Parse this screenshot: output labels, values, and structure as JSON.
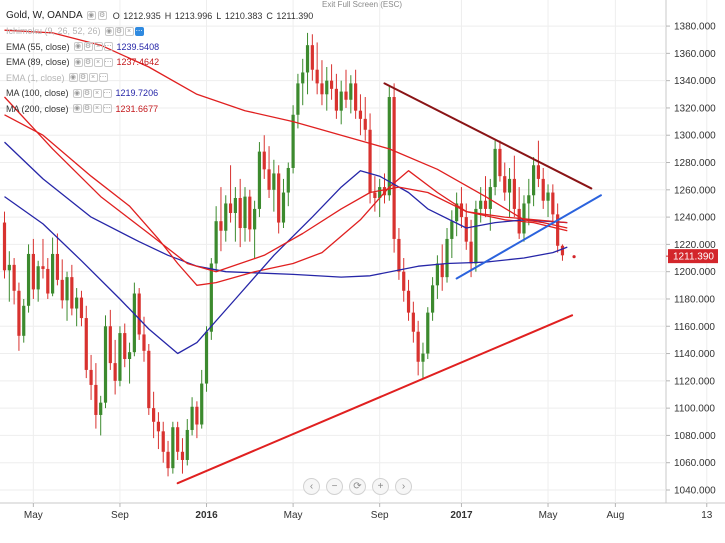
{
  "header": {
    "symbol": "Gold, W, OANDA",
    "ohlc": [
      {
        "key": "O",
        "value": "1212.935"
      },
      {
        "key": "H",
        "value": "1213.996"
      },
      {
        "key": "L",
        "value": "1210.383"
      },
      {
        "key": "C",
        "value": "1211.390"
      }
    ],
    "exit_fullscreen": "Exit Full Screen (ESC)"
  },
  "indicators": [
    {
      "name": "Ichimoku (9, 26, 52, 26)",
      "value": "",
      "color": "#2626a8",
      "faded": true
    },
    {
      "name": "EMA (55, close)",
      "value": "1239.5408",
      "color": "#2626a8",
      "faded": false
    },
    {
      "name": "EMA (89, close)",
      "value": "1237.4642",
      "color": "#c4191d",
      "faded": false
    },
    {
      "name": "EMA (1, close)",
      "value": "",
      "color": "#2626a8",
      "faded": true
    },
    {
      "name": "MA (100, close)",
      "value": "1219.7206",
      "color": "#2626a8",
      "faded": false
    },
    {
      "name": "MA (200, close)",
      "value": "1231.6677",
      "color": "#c4191d",
      "faded": false
    }
  ],
  "navigation": [
    "‹",
    "−",
    "⟳",
    "+",
    "›"
  ],
  "colors": {
    "up": "#3c8a2e",
    "down": "#d8322f",
    "blue_line": "#2626a8",
    "red_line": "#e02020",
    "trendline_blue": "#2b63dd",
    "trendline_dark_red": "#8a1416",
    "price_label_bg": "#d3262b"
  },
  "chart_data": {
    "type": "candlestick",
    "symbol": "Gold",
    "timeframe": "W",
    "source": "OANDA",
    "last_price": "1211.390",
    "ylim": [
      1030,
      1390
    ],
    "y_ticks": [
      "1040.000",
      "1060.000",
      "1080.000",
      "1100.000",
      "1120.000",
      "1140.000",
      "1160.000",
      "1180.000",
      "1200.000",
      "1220.000",
      "1240.000",
      "1260.000",
      "1280.000",
      "1300.000",
      "1320.000",
      "1340.000",
      "1360.000",
      "1380.000"
    ],
    "x_ticks": [
      {
        "label": "May",
        "week": 6
      },
      {
        "label": "Sep",
        "week": 24
      },
      {
        "label": "2016",
        "week": 42
      },
      {
        "label": "May",
        "week": 60
      },
      {
        "label": "Sep",
        "week": 78
      },
      {
        "label": "2017",
        "week": 95
      },
      {
        "label": "May",
        "week": 113
      },
      {
        "label": "Aug",
        "week": 127
      },
      {
        "label": "13",
        "week": 146
      }
    ],
    "candles": [
      {
        "o": 1236,
        "h": 1244,
        "l": 1195,
        "c": 1201
      },
      {
        "o": 1201,
        "h": 1215,
        "l": 1178,
        "c": 1205
      },
      {
        "o": 1205,
        "h": 1210,
        "l": 1176,
        "c": 1186
      },
      {
        "o": 1186,
        "h": 1192,
        "l": 1142,
        "c": 1153
      },
      {
        "o": 1153,
        "h": 1180,
        "l": 1148,
        "c": 1175
      },
      {
        "o": 1175,
        "h": 1220,
        "l": 1170,
        "c": 1213
      },
      {
        "o": 1213,
        "h": 1224,
        "l": 1180,
        "c": 1187
      },
      {
        "o": 1187,
        "h": 1208,
        "l": 1178,
        "c": 1204
      },
      {
        "o": 1204,
        "h": 1224,
        "l": 1195,
        "c": 1202
      },
      {
        "o": 1202,
        "h": 1210,
        "l": 1180,
        "c": 1184
      },
      {
        "o": 1184,
        "h": 1225,
        "l": 1182,
        "c": 1213
      },
      {
        "o": 1213,
        "h": 1228,
        "l": 1190,
        "c": 1194
      },
      {
        "o": 1194,
        "h": 1209,
        "l": 1173,
        "c": 1179
      },
      {
        "o": 1179,
        "h": 1200,
        "l": 1164,
        "c": 1196
      },
      {
        "o": 1196,
        "h": 1205,
        "l": 1168,
        "c": 1173
      },
      {
        "o": 1173,
        "h": 1188,
        "l": 1160,
        "c": 1181
      },
      {
        "o": 1181,
        "h": 1186,
        "l": 1160,
        "c": 1166
      },
      {
        "o": 1166,
        "h": 1175,
        "l": 1122,
        "c": 1128
      },
      {
        "o": 1128,
        "h": 1139,
        "l": 1106,
        "c": 1117
      },
      {
        "o": 1117,
        "h": 1133,
        "l": 1085,
        "c": 1095
      },
      {
        "o": 1095,
        "h": 1109,
        "l": 1080,
        "c": 1104
      },
      {
        "o": 1104,
        "h": 1168,
        "l": 1100,
        "c": 1160
      },
      {
        "o": 1160,
        "h": 1172,
        "l": 1128,
        "c": 1133
      },
      {
        "o": 1133,
        "h": 1150,
        "l": 1110,
        "c": 1120
      },
      {
        "o": 1120,
        "h": 1160,
        "l": 1116,
        "c": 1155
      },
      {
        "o": 1155,
        "h": 1162,
        "l": 1130,
        "c": 1136
      },
      {
        "o": 1136,
        "h": 1148,
        "l": 1118,
        "c": 1141
      },
      {
        "o": 1141,
        "h": 1192,
        "l": 1138,
        "c": 1184
      },
      {
        "o": 1184,
        "h": 1188,
        "l": 1150,
        "c": 1154
      },
      {
        "o": 1154,
        "h": 1167,
        "l": 1134,
        "c": 1142
      },
      {
        "o": 1142,
        "h": 1147,
        "l": 1095,
        "c": 1100
      },
      {
        "o": 1100,
        "h": 1112,
        "l": 1078,
        "c": 1090
      },
      {
        "o": 1090,
        "h": 1097,
        "l": 1070,
        "c": 1083
      },
      {
        "o": 1083,
        "h": 1090,
        "l": 1060,
        "c": 1068
      },
      {
        "o": 1068,
        "h": 1076,
        "l": 1050,
        "c": 1056
      },
      {
        "o": 1056,
        "h": 1090,
        "l": 1052,
        "c": 1086
      },
      {
        "o": 1086,
        "h": 1090,
        "l": 1062,
        "c": 1068
      },
      {
        "o": 1068,
        "h": 1078,
        "l": 1052,
        "c": 1062
      },
      {
        "o": 1062,
        "h": 1092,
        "l": 1058,
        "c": 1084
      },
      {
        "o": 1084,
        "h": 1108,
        "l": 1080,
        "c": 1101
      },
      {
        "o": 1101,
        "h": 1105,
        "l": 1078,
        "c": 1088
      },
      {
        "o": 1088,
        "h": 1128,
        "l": 1085,
        "c": 1118
      },
      {
        "o": 1118,
        "h": 1160,
        "l": 1112,
        "c": 1156
      },
      {
        "o": 1156,
        "h": 1210,
        "l": 1150,
        "c": 1206
      },
      {
        "o": 1206,
        "h": 1248,
        "l": 1200,
        "c": 1237
      },
      {
        "o": 1237,
        "h": 1262,
        "l": 1215,
        "c": 1230
      },
      {
        "o": 1230,
        "h": 1256,
        "l": 1222,
        "c": 1250
      },
      {
        "o": 1250,
        "h": 1278,
        "l": 1236,
        "c": 1243
      },
      {
        "o": 1243,
        "h": 1262,
        "l": 1222,
        "c": 1254
      },
      {
        "o": 1254,
        "h": 1268,
        "l": 1218,
        "c": 1232
      },
      {
        "o": 1232,
        "h": 1262,
        "l": 1222,
        "c": 1255
      },
      {
        "o": 1255,
        "h": 1260,
        "l": 1222,
        "c": 1231
      },
      {
        "o": 1231,
        "h": 1252,
        "l": 1210,
        "c": 1246
      },
      {
        "o": 1246,
        "h": 1295,
        "l": 1240,
        "c": 1288
      },
      {
        "o": 1288,
        "h": 1300,
        "l": 1268,
        "c": 1275
      },
      {
        "o": 1275,
        "h": 1292,
        "l": 1254,
        "c": 1260
      },
      {
        "o": 1260,
        "h": 1282,
        "l": 1244,
        "c": 1272
      },
      {
        "o": 1272,
        "h": 1278,
        "l": 1228,
        "c": 1236
      },
      {
        "o": 1236,
        "h": 1268,
        "l": 1232,
        "c": 1258
      },
      {
        "o": 1258,
        "h": 1280,
        "l": 1248,
        "c": 1276
      },
      {
        "o": 1276,
        "h": 1322,
        "l": 1272,
        "c": 1315
      },
      {
        "o": 1315,
        "h": 1345,
        "l": 1305,
        "c": 1338
      },
      {
        "o": 1338,
        "h": 1356,
        "l": 1322,
        "c": 1346
      },
      {
        "o": 1346,
        "h": 1375,
        "l": 1330,
        "c": 1366
      },
      {
        "o": 1366,
        "h": 1374,
        "l": 1340,
        "c": 1348
      },
      {
        "o": 1348,
        "h": 1368,
        "l": 1330,
        "c": 1338
      },
      {
        "o": 1338,
        "h": 1355,
        "l": 1322,
        "c": 1330
      },
      {
        "o": 1330,
        "h": 1350,
        "l": 1318,
        "c": 1340
      },
      {
        "o": 1340,
        "h": 1352,
        "l": 1326,
        "c": 1334
      },
      {
        "o": 1334,
        "h": 1345,
        "l": 1312,
        "c": 1318
      },
      {
        "o": 1318,
        "h": 1340,
        "l": 1308,
        "c": 1332
      },
      {
        "o": 1332,
        "h": 1348,
        "l": 1320,
        "c": 1326
      },
      {
        "o": 1326,
        "h": 1344,
        "l": 1316,
        "c": 1338
      },
      {
        "o": 1338,
        "h": 1348,
        "l": 1312,
        "c": 1318
      },
      {
        "o": 1318,
        "h": 1330,
        "l": 1300,
        "c": 1312
      },
      {
        "o": 1312,
        "h": 1328,
        "l": 1296,
        "c": 1304
      },
      {
        "o": 1304,
        "h": 1316,
        "l": 1250,
        "c": 1258
      },
      {
        "o": 1258,
        "h": 1270,
        "l": 1244,
        "c": 1254
      },
      {
        "o": 1254,
        "h": 1268,
        "l": 1240,
        "c": 1262
      },
      {
        "o": 1262,
        "h": 1272,
        "l": 1250,
        "c": 1256
      },
      {
        "o": 1256,
        "h": 1336,
        "l": 1252,
        "c": 1328
      },
      {
        "o": 1328,
        "h": 1338,
        "l": 1214,
        "c": 1224
      },
      {
        "o": 1224,
        "h": 1232,
        "l": 1194,
        "c": 1200
      },
      {
        "o": 1200,
        "h": 1210,
        "l": 1178,
        "c": 1186
      },
      {
        "o": 1186,
        "h": 1194,
        "l": 1164,
        "c": 1170
      },
      {
        "o": 1170,
        "h": 1178,
        "l": 1148,
        "c": 1156
      },
      {
        "o": 1156,
        "h": 1164,
        "l": 1124,
        "c": 1134
      },
      {
        "o": 1134,
        "h": 1148,
        "l": 1122,
        "c": 1140
      },
      {
        "o": 1140,
        "h": 1174,
        "l": 1136,
        "c": 1170
      },
      {
        "o": 1170,
        "h": 1196,
        "l": 1164,
        "c": 1190
      },
      {
        "o": 1190,
        "h": 1212,
        "l": 1180,
        "c": 1206
      },
      {
        "o": 1206,
        "h": 1220,
        "l": 1186,
        "c": 1196
      },
      {
        "o": 1196,
        "h": 1232,
        "l": 1192,
        "c": 1224
      },
      {
        "o": 1224,
        "h": 1245,
        "l": 1210,
        "c": 1237
      },
      {
        "o": 1237,
        "h": 1258,
        "l": 1226,
        "c": 1250
      },
      {
        "o": 1250,
        "h": 1262,
        "l": 1232,
        "c": 1240
      },
      {
        "o": 1240,
        "h": 1250,
        "l": 1216,
        "c": 1222
      },
      {
        "o": 1222,
        "h": 1238,
        "l": 1196,
        "c": 1206
      },
      {
        "o": 1206,
        "h": 1252,
        "l": 1200,
        "c": 1246
      },
      {
        "o": 1246,
        "h": 1262,
        "l": 1236,
        "c": 1252
      },
      {
        "o": 1252,
        "h": 1270,
        "l": 1240,
        "c": 1246
      },
      {
        "o": 1246,
        "h": 1268,
        "l": 1230,
        "c": 1262
      },
      {
        "o": 1262,
        "h": 1296,
        "l": 1256,
        "c": 1290
      },
      {
        "o": 1290,
        "h": 1296,
        "l": 1266,
        "c": 1270
      },
      {
        "o": 1270,
        "h": 1280,
        "l": 1252,
        "c": 1258
      },
      {
        "o": 1258,
        "h": 1276,
        "l": 1240,
        "c": 1268
      },
      {
        "o": 1268,
        "h": 1285,
        "l": 1240,
        "c": 1246
      },
      {
        "o": 1246,
        "h": 1262,
        "l": 1224,
        "c": 1228
      },
      {
        "o": 1228,
        "h": 1256,
        "l": 1222,
        "c": 1250
      },
      {
        "o": 1250,
        "h": 1268,
        "l": 1234,
        "c": 1256
      },
      {
        "o": 1256,
        "h": 1284,
        "l": 1248,
        "c": 1278
      },
      {
        "o": 1278,
        "h": 1296,
        "l": 1262,
        "c": 1268
      },
      {
        "o": 1268,
        "h": 1276,
        "l": 1246,
        "c": 1252
      },
      {
        "o": 1252,
        "h": 1264,
        "l": 1240,
        "c": 1258
      },
      {
        "o": 1258,
        "h": 1264,
        "l": 1236,
        "c": 1242
      },
      {
        "o": 1242,
        "h": 1250,
        "l": 1214,
        "c": 1219
      },
      {
        "o": 1219,
        "h": 1220,
        "l": 1208,
        "c": 1212
      }
    ],
    "ma_lines": [
      {
        "color": "#2626a8",
        "points": [
          [
            0,
            1295
          ],
          [
            8,
            1268
          ],
          [
            18,
            1240
          ],
          [
            28,
            1222
          ],
          [
            34,
            1212
          ],
          [
            40,
            1204
          ],
          [
            46,
            1200
          ],
          [
            60,
            1198
          ],
          [
            70,
            1196
          ],
          [
            76,
            1197
          ],
          [
            86,
            1204
          ],
          [
            92,
            1206
          ],
          [
            100,
            1207
          ],
          [
            108,
            1210
          ],
          [
            114,
            1214
          ],
          [
            117,
            1218
          ]
        ]
      },
      {
        "color": "#e02020",
        "points": [
          [
            0,
            1315
          ],
          [
            8,
            1300
          ],
          [
            18,
            1270
          ],
          [
            26,
            1248
          ],
          [
            32,
            1224
          ],
          [
            36,
            1206
          ],
          [
            40,
            1190
          ],
          [
            44,
            1192
          ],
          [
            52,
            1200
          ],
          [
            60,
            1206
          ],
          [
            66,
            1214
          ],
          [
            74,
            1238
          ],
          [
            80,
            1262
          ],
          [
            84,
            1274
          ],
          [
            90,
            1258
          ],
          [
            96,
            1244
          ],
          [
            104,
            1238
          ],
          [
            110,
            1236
          ],
          [
            117,
            1230
          ]
        ]
      },
      {
        "color": "#2626a8",
        "points": [
          [
            0,
            1255
          ],
          [
            8,
            1235
          ],
          [
            16,
            1208
          ],
          [
            24,
            1180
          ],
          [
            30,
            1158
          ],
          [
            36,
            1140
          ],
          [
            40,
            1148
          ],
          [
            48,
            1180
          ],
          [
            56,
            1212
          ],
          [
            64,
            1240
          ],
          [
            70,
            1262
          ],
          [
            74,
            1274
          ],
          [
            78,
            1270
          ],
          [
            84,
            1258
          ],
          [
            88,
            1246
          ],
          [
            96,
            1232
          ],
          [
            102,
            1236
          ],
          [
            108,
            1238
          ],
          [
            117,
            1236
          ]
        ]
      },
      {
        "color": "#e02020",
        "points": [
          [
            0,
            1328
          ],
          [
            10,
            1290
          ],
          [
            20,
            1255
          ],
          [
            30,
            1228
          ],
          [
            38,
            1206
          ],
          [
            44,
            1200
          ],
          [
            54,
            1212
          ],
          [
            62,
            1228
          ],
          [
            70,
            1246
          ],
          [
            76,
            1258
          ],
          [
            82,
            1262
          ],
          [
            88,
            1258
          ],
          [
            96,
            1244
          ],
          [
            104,
            1240
          ],
          [
            117,
            1236
          ]
        ]
      },
      {
        "color": "#e02020",
        "points": [
          [
            0,
            1377
          ],
          [
            10,
            1375
          ],
          [
            20,
            1366
          ],
          [
            30,
            1350
          ],
          [
            40,
            1330
          ],
          [
            50,
            1318
          ],
          [
            60,
            1310
          ],
          [
            70,
            1300
          ],
          [
            80,
            1290
          ],
          [
            90,
            1275
          ],
          [
            100,
            1255
          ],
          [
            108,
            1238
          ],
          [
            112,
            1236
          ],
          [
            117,
            1232
          ]
        ]
      }
    ],
    "trendlines": [
      {
        "color": "#e02020",
        "from": [
          36,
          1045
        ],
        "to": [
          118,
          1168
        ]
      },
      {
        "color": "#8a1416",
        "from": [
          79,
          1338
        ],
        "to": [
          122,
          1261
        ]
      },
      {
        "color": "#2b63dd",
        "from": [
          94,
          1195
        ],
        "to": [
          124,
          1256
        ]
      }
    ],
    "last_price_dot": [
      118,
      1211
    ]
  }
}
